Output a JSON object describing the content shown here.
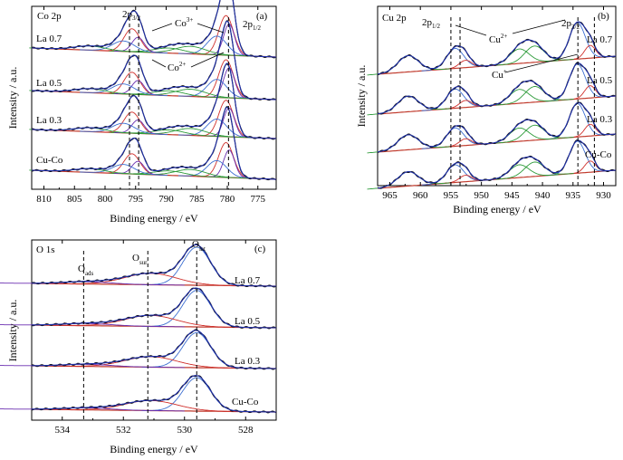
{
  "chart_data": [
    {
      "id": "co2p",
      "type": "line",
      "panel_label": "(a)",
      "region_label": "Co 2p",
      "xlabel": "Binding energy / eV",
      "ylabel": "Intensity / a.u.",
      "xlim": [
        812,
        772
      ],
      "x_ticks": [
        810,
        805,
        800,
        795,
        790,
        785,
        780,
        775
      ],
      "x_reversed": true,
      "samples": [
        "La 0.7",
        "La 0.5",
        "La 0.3",
        "Cu-Co"
      ],
      "dashed_lines": [
        796.0,
        794.5,
        779.8
      ],
      "annotations": [
        {
          "text": "2p",
          "sub": "3/2"
        },
        {
          "text": "Co",
          "sup": "3+"
        },
        {
          "text": "2p",
          "sub": "1/2"
        },
        {
          "text": "Co",
          "sup": "2+"
        }
      ],
      "peaks": [
        {
          "center": 780.2,
          "width": 1.2,
          "height": 0.95,
          "color": "#d0312d"
        },
        {
          "center": 779.7,
          "width": 0.9,
          "height": 0.75,
          "color": "#6a2fb0"
        },
        {
          "center": 781.7,
          "width": 1.6,
          "height": 0.45,
          "color": "#3d6fd1"
        },
        {
          "center": 786.0,
          "width": 2.5,
          "height": 0.18,
          "color": "#2e9b3a"
        },
        {
          "center": 789.5,
          "width": 2.5,
          "height": 0.12,
          "color": "#2e9b3a"
        },
        {
          "center": 795.6,
          "width": 1.3,
          "height": 0.55,
          "color": "#d0312d"
        },
        {
          "center": 794.6,
          "width": 1.0,
          "height": 0.35,
          "color": "#6a2fb0"
        },
        {
          "center": 797.0,
          "width": 1.8,
          "height": 0.25,
          "color": "#3d6fd1"
        },
        {
          "center": 802.5,
          "width": 2.5,
          "height": 0.1,
          "color": "#2e9b3a"
        }
      ]
    },
    {
      "id": "cu2p",
      "type": "line",
      "panel_label": "(b)",
      "region_label": "Cu 2p",
      "xlabel": "Binding energy / eV",
      "ylabel": "Intensity / a.u.",
      "xlim": [
        967,
        928
      ],
      "x_ticks": [
        965,
        960,
        955,
        950,
        945,
        940,
        935,
        930
      ],
      "x_reversed": true,
      "samples": [
        "La 0.7",
        "La 0.5",
        "La 0.3",
        "Cu-Co"
      ],
      "dashed_lines": [
        955.0,
        953.5,
        934.2,
        931.5
      ],
      "annotations": [
        {
          "text": "2p",
          "sub": "1/2"
        },
        {
          "text": "Cu",
          "sup": "2+"
        },
        {
          "text": "2p",
          "sub": "3/2"
        },
        {
          "text": "Cu",
          "sup": "+"
        }
      ],
      "peaks": [
        {
          "center": 934.3,
          "width": 1.3,
          "height": 1.0,
          "color": "#3d6fd1"
        },
        {
          "center": 932.2,
          "width": 0.9,
          "height": 0.35,
          "color": "#d0312d"
        },
        {
          "center": 941.3,
          "width": 1.6,
          "height": 0.45,
          "color": "#2e9b3a"
        },
        {
          "center": 943.8,
          "width": 1.6,
          "height": 0.4,
          "color": "#2e9b3a"
        },
        {
          "center": 954.3,
          "width": 1.4,
          "height": 0.55,
          "color": "#3d6fd1"
        },
        {
          "center": 952.6,
          "width": 1.0,
          "height": 0.2,
          "color": "#d0312d"
        },
        {
          "center": 962.0,
          "width": 1.7,
          "height": 0.45,
          "color": "#2e9b3a"
        }
      ]
    },
    {
      "id": "o1s",
      "type": "line",
      "panel_label": "(c)",
      "region_label": "O 1s",
      "xlabel": "Binding energy / eV",
      "ylabel": "Intensity / a.u.",
      "xlim": [
        535,
        527
      ],
      "x_ticks": [
        534,
        532,
        530,
        528
      ],
      "x_reversed": true,
      "samples": [
        "La 0.7",
        "La 0.5",
        "La 0.3",
        "Cu-Co"
      ],
      "dashed_lines": [
        533.3,
        531.2,
        529.6
      ],
      "annotations": [
        {
          "text": "O",
          "sub": "ads"
        },
        {
          "text": "O",
          "sub": "sur"
        },
        {
          "text": "O",
          "sub": "lat"
        }
      ],
      "peaks": [
        {
          "center": 529.6,
          "width": 0.45,
          "height": 1.0,
          "color": "#3d6fd1"
        },
        {
          "center": 531.1,
          "width": 0.85,
          "height": 0.3,
          "color": "#d0312d"
        },
        {
          "center": 533.2,
          "width": 0.8,
          "height": 0.06,
          "color": "#6a2fb0"
        }
      ]
    }
  ]
}
